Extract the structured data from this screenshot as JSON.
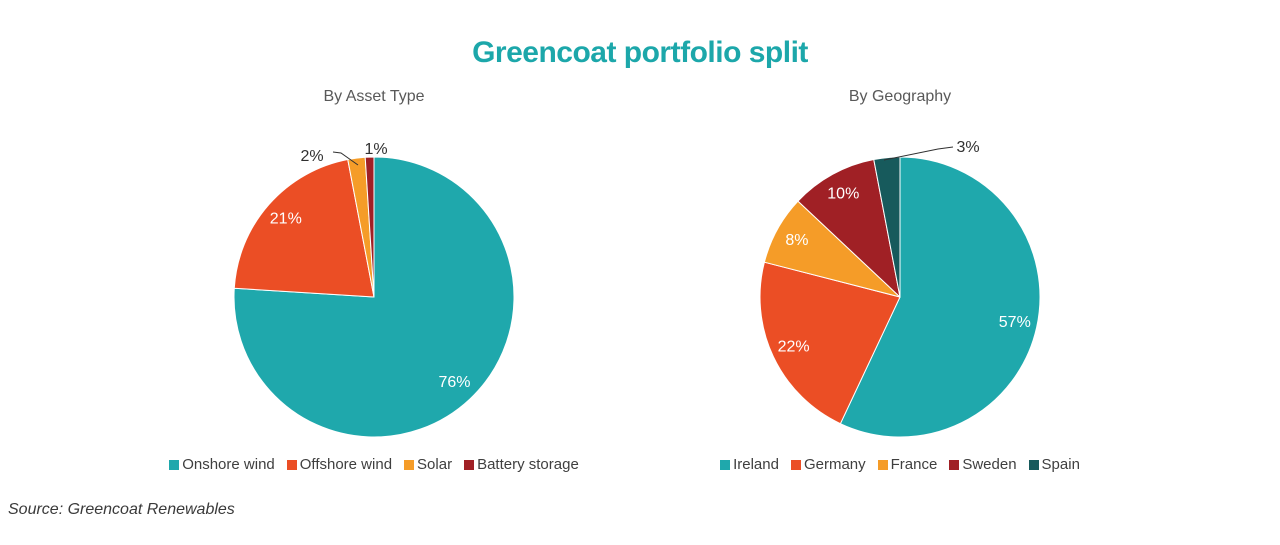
{
  "title": "Greencoat portfolio split",
  "source_note": "Source: Greencoat Renewables",
  "theme": {
    "background": "#FFFFFF",
    "title_color": "#1CA7AA",
    "subtitle_color": "#595959",
    "legend_text_color": "#3F3F3F",
    "inside_label_color": "#FFFFFF",
    "outside_label_color": "#303030"
  },
  "chart_data": [
    {
      "type": "pie",
      "title": "By Asset Type",
      "categories": [
        "Onshore wind",
        "Offshore wind",
        "Solar",
        "Battery storage"
      ],
      "values": [
        76,
        21,
        2,
        1
      ],
      "unit": "%",
      "data_labels": [
        "76%",
        "21%",
        "2%",
        "1%"
      ],
      "colors": [
        "#1FA8AC",
        "#EB4E25",
        "#F59C28",
        "#A02025"
      ],
      "start_angle_deg": 0,
      "direction": "clockwise",
      "legend_position": "bottom",
      "small_slices_labeled_outside": true
    },
    {
      "type": "pie",
      "title": "By Geography",
      "categories": [
        "Ireland",
        "Germany",
        "France",
        "Sweden",
        "Spain"
      ],
      "values": [
        57,
        22,
        8,
        10,
        3
      ],
      "unit": "%",
      "data_labels": [
        "57%",
        "22%",
        "8%",
        "10%",
        "3%"
      ],
      "colors": [
        "#1FA8AC",
        "#EB4E25",
        "#F59C28",
        "#A02025",
        "#175A5C"
      ],
      "start_angle_deg": 0,
      "direction": "clockwise",
      "legend_position": "bottom",
      "small_slices_labeled_outside": true
    }
  ]
}
